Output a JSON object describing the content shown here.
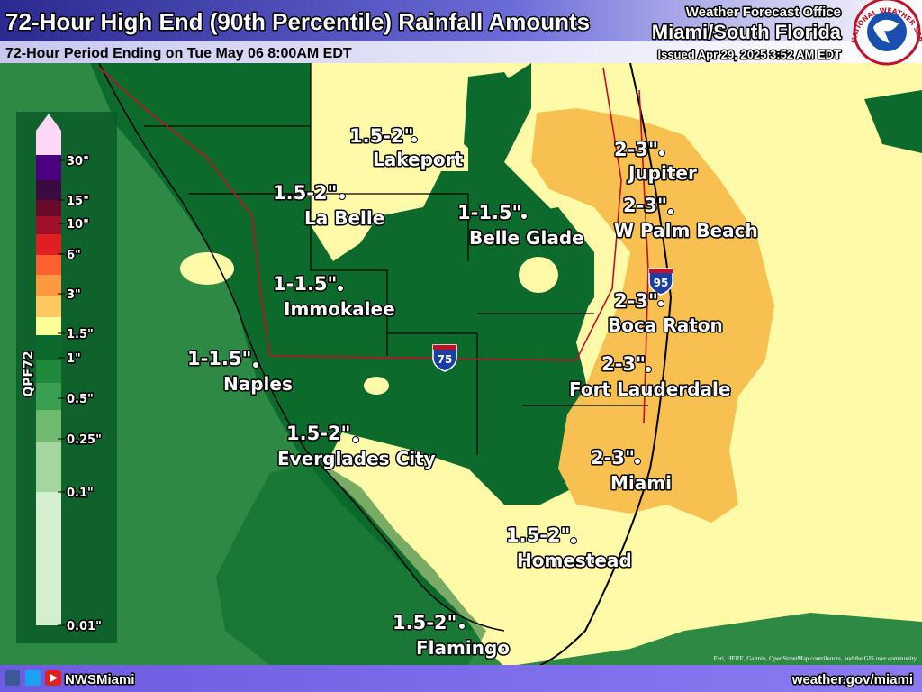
{
  "header": {
    "title": "72-Hour High End (90th Percentile) Rainfall Amounts",
    "subtitle": "72-Hour Period Ending on Tue May 06 8:00AM EDT",
    "office_label": "Weather Forecast Office",
    "office_name": "Miami/South Florida",
    "issued": "Issued Apr 29, 2025 3:52 AM EDT"
  },
  "seal_text": "NATIONAL WEATHER SERVICE",
  "legend": {
    "title": "QPF72",
    "labels": [
      "30\"",
      "15\"",
      "10\"",
      "6\"",
      "3\"",
      "1.5\"",
      "1\"",
      "0.5\"",
      "0.25\"",
      "0.1\"",
      "0.01\""
    ]
  },
  "locations": [
    {
      "amount": "1.5-2\"",
      "name": "Lakeport"
    },
    {
      "amount": "1.5-2\"",
      "name": "La Belle"
    },
    {
      "amount": "1-1.5\"",
      "name": "Belle Glade"
    },
    {
      "amount": "1-1.5\"",
      "name": "Immokalee"
    },
    {
      "amount": "1-1.5\"",
      "name": "Naples"
    },
    {
      "amount": "1.5-2\"",
      "name": "Everglades City"
    },
    {
      "amount": "1.5-2\"",
      "name": "Homestead"
    },
    {
      "amount": "1.5-2\"",
      "name": "Flamingo"
    },
    {
      "amount": "2-3\"",
      "name": "Jupiter"
    },
    {
      "amount": "2-3\"",
      "name": "W Palm Beach"
    },
    {
      "amount": "2-3\"",
      "name": "Boca Raton"
    },
    {
      "amount": "2-3\"",
      "name": "Fort Lauderdale"
    },
    {
      "amount": "2-3\"",
      "name": "Miami"
    }
  ],
  "highways": [
    "95",
    "75"
  ],
  "footer": {
    "social": "NWSMiami",
    "url": "weather.gov/miami",
    "attribution": "Esri, HERE, Garmin, OpenStreetMap contributors, and the GIS user community"
  }
}
